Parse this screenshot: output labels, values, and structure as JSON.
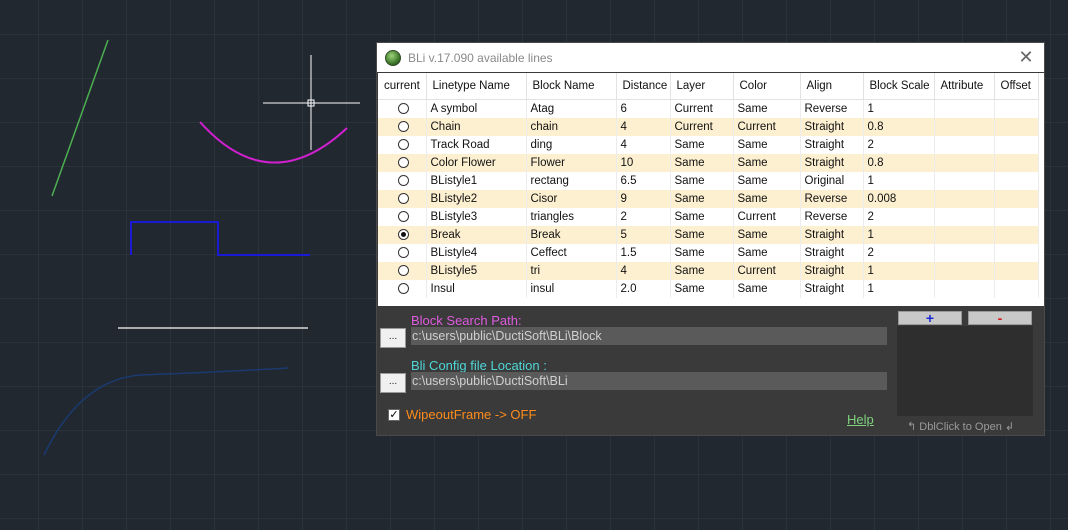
{
  "window": {
    "title": "BLi v.17.090 available lines",
    "close_glyph": "✕"
  },
  "table": {
    "columns": [
      "current",
      "Linetype Name",
      "Block Name",
      "Distance",
      "Layer",
      "Color",
      "Align",
      "Block Scale",
      "Attribute",
      "Offset"
    ],
    "rows": [
      {
        "selected": false,
        "name": "A symbol",
        "block": "Atag",
        "distance": "6",
        "layer": "Current",
        "color": "Same",
        "align": "Reverse",
        "scale": "1",
        "attribute": "",
        "offset": ""
      },
      {
        "selected": false,
        "name": "Chain",
        "block": "chain",
        "distance": "4",
        "layer": "Current",
        "color": "Current",
        "align": "Straight",
        "scale": "0.8",
        "attribute": "",
        "offset": ""
      },
      {
        "selected": false,
        "name": "Track Road",
        "block": "ding",
        "distance": "4",
        "layer": "Same",
        "color": "Same",
        "align": "Straight",
        "scale": "2",
        "attribute": "",
        "offset": ""
      },
      {
        "selected": false,
        "name": "Color Flower",
        "block": "Flower",
        "distance": "10",
        "layer": "Same",
        "color": "Same",
        "align": "Straight",
        "scale": "0.8",
        "attribute": "",
        "offset": ""
      },
      {
        "selected": false,
        "name": "BListyle1",
        "block": "rectang",
        "distance": "6.5",
        "layer": "Same",
        "color": "Same",
        "align": "Original",
        "scale": "1",
        "attribute": "",
        "offset": ""
      },
      {
        "selected": false,
        "name": "BListyle2",
        "block": "Cisor",
        "distance": "9",
        "layer": "Same",
        "color": "Same",
        "align": "Reverse",
        "scale": "0.008",
        "attribute": "",
        "offset": ""
      },
      {
        "selected": false,
        "name": "BListyle3",
        "block": "triangles",
        "distance": "2",
        "layer": "Same",
        "color": "Current",
        "align": "Reverse",
        "scale": "2",
        "attribute": "",
        "offset": ""
      },
      {
        "selected": true,
        "name": "Break",
        "block": "Break",
        "distance": "5",
        "layer": "Same",
        "color": "Same",
        "align": "Straight",
        "scale": "1",
        "attribute": "",
        "offset": ""
      },
      {
        "selected": false,
        "name": "BListyle4",
        "block": "Ceffect",
        "distance": "1.5",
        "layer": "Same",
        "color": "Same",
        "align": "Straight",
        "scale": "2",
        "attribute": "",
        "offset": ""
      },
      {
        "selected": false,
        "name": "BListyle5",
        "block": "tri",
        "distance": "4",
        "layer": "Same",
        "color": "Current",
        "align": "Straight",
        "scale": "1",
        "attribute": "",
        "offset": ""
      },
      {
        "selected": false,
        "name": "Insul",
        "block": "insul",
        "distance": "2.0",
        "layer": "Same",
        "color": "Same",
        "align": "Straight",
        "scale": "1",
        "attribute": "",
        "offset": ""
      }
    ]
  },
  "block_search": {
    "label": "Block Search Path:",
    "value": "c:\\users\\public\\DuctiSoft\\BLi\\Block",
    "browse_label": "..."
  },
  "config": {
    "label": "Bli Config file Location :",
    "value": "c:\\users\\public\\DuctiSoft\\BLi",
    "browse_label": "..."
  },
  "wipeout": {
    "checked": true,
    "check_glyph": "✓",
    "label": "WipeoutFrame -> OFF"
  },
  "help_label": "Help",
  "side": {
    "plus_label": "+",
    "minus_label": "-",
    "hint": "DblClick to Open"
  },
  "colors": {
    "canvas_bg": "#212830",
    "row_alt": "#fdf0d1",
    "label_pink": "#e05ce0",
    "label_cyan": "#4fd6d6",
    "wipeout_orange": "#ff8c1a",
    "help_green": "#7fd07f"
  }
}
